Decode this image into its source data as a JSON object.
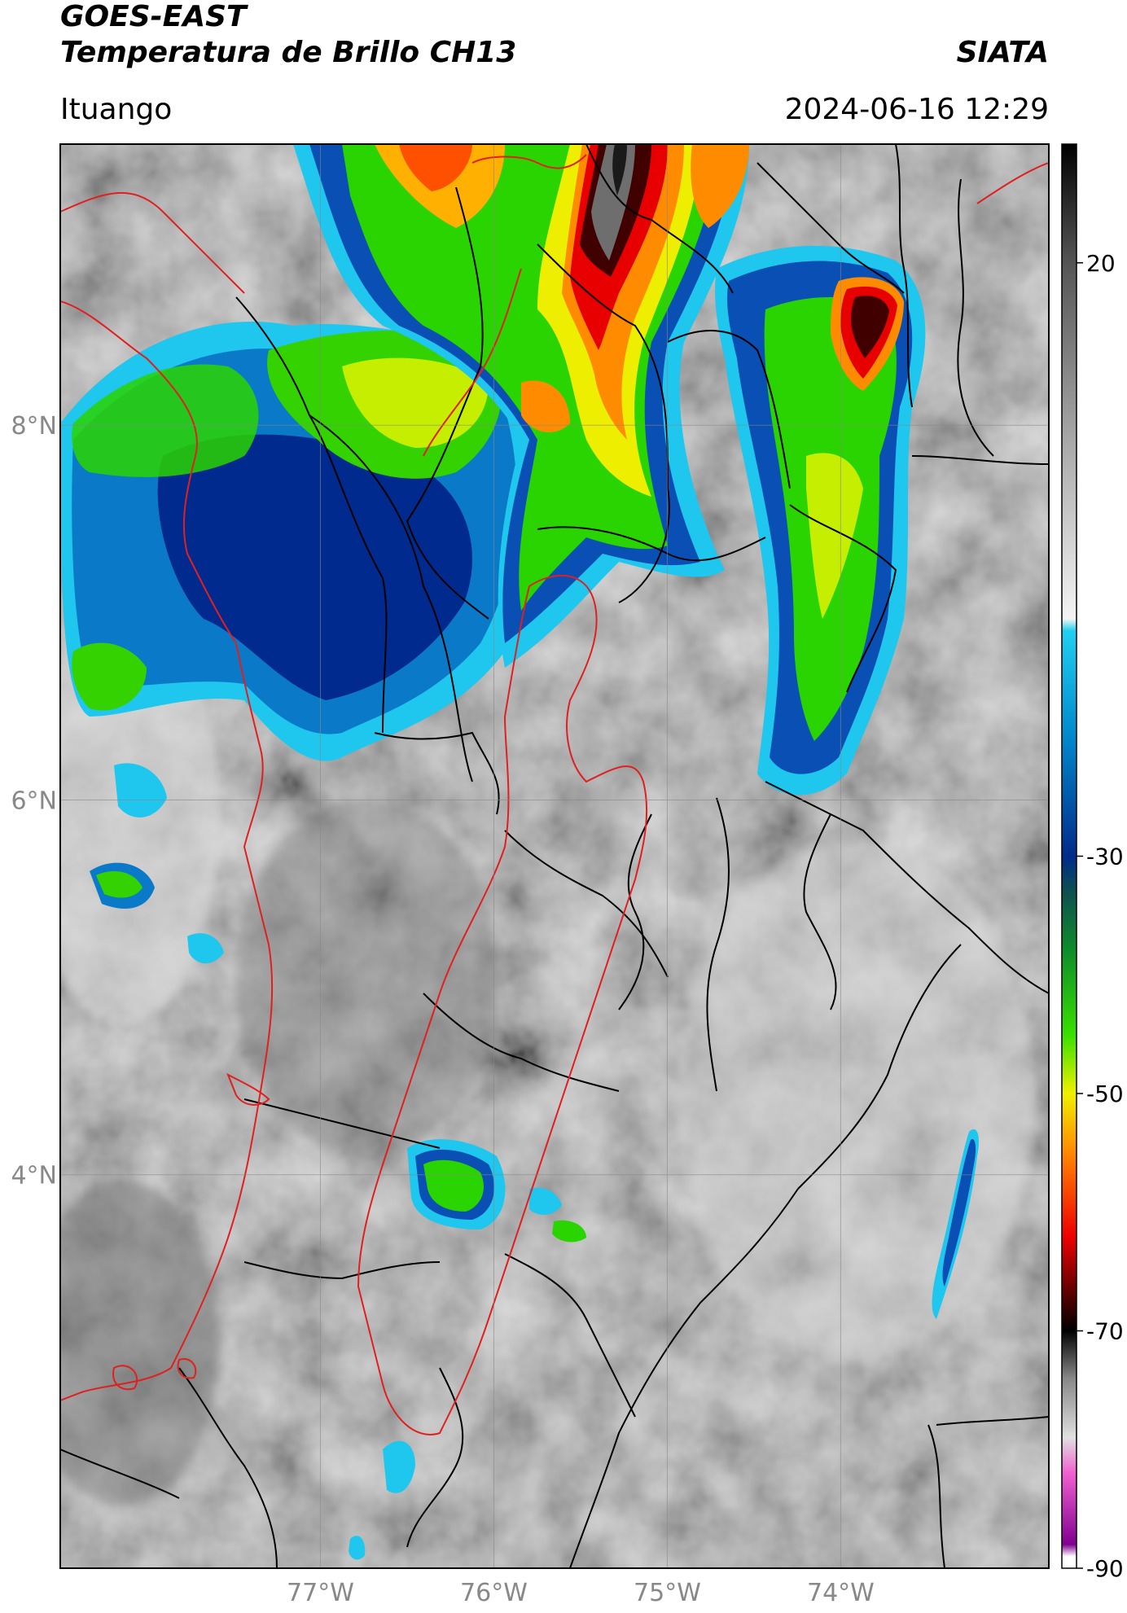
{
  "header": {
    "title_line1": "GOES-EAST",
    "title_line2": "Temperatura de Brillo CH13",
    "organization": "SIATA",
    "location": "Ituango",
    "timestamp": "2024-06-16 12:29"
  },
  "map": {
    "lon_range": [
      -78.5,
      -72.8
    ],
    "lat_range": [
      1.9,
      9.5
    ],
    "lon_ticks": [
      {
        "value": -77,
        "label": "77°W"
      },
      {
        "value": -76,
        "label": "76°W"
      },
      {
        "value": -75,
        "label": "75°W"
      },
      {
        "value": -74,
        "label": "74°W"
      }
    ],
    "lat_ticks": [
      {
        "value": 8,
        "label": "8°N"
      },
      {
        "value": 6,
        "label": "6°N"
      },
      {
        "value": 4,
        "label": "4°N"
      }
    ],
    "colors": {
      "background_gray": "#9a9a9a",
      "border_black": "#000000",
      "border_red": "#e02020",
      "grid": "#888888"
    },
    "cloud_regions": [
      {
        "name": "north-central-convective-system",
        "peak_temp": -70
      },
      {
        "name": "northeast-convective-cell",
        "peak_temp": -65
      },
      {
        "name": "pacific-coast-cloud-mass",
        "peak_temp": -45
      },
      {
        "name": "southern-small-cell",
        "peak_temp": -45
      }
    ]
  },
  "colorbar": {
    "range": [
      -90,
      30
    ],
    "ticks": [
      {
        "value": 20,
        "label": "20"
      },
      {
        "value": -30,
        "label": "-30"
      },
      {
        "value": -50,
        "label": "-50"
      },
      {
        "value": -70,
        "label": "-70"
      },
      {
        "value": -90,
        "label": "-90"
      }
    ],
    "stops": [
      {
        "value": 30,
        "color": "#000000"
      },
      {
        "value": 20,
        "color": "#555555"
      },
      {
        "value": 5,
        "color": "#a8a8a8"
      },
      {
        "value": -10,
        "color": "#f4f4f4"
      },
      {
        "value": -11,
        "color": "#20d0f0"
      },
      {
        "value": -20,
        "color": "#0088cc"
      },
      {
        "value": -30,
        "color": "#002b8a"
      },
      {
        "value": -33,
        "color": "#0e5050"
      },
      {
        "value": -38,
        "color": "#0e8e2a"
      },
      {
        "value": -45,
        "color": "#38e000"
      },
      {
        "value": -50,
        "color": "#f0f000"
      },
      {
        "value": -55,
        "color": "#ff8800"
      },
      {
        "value": -62,
        "color": "#ee0000"
      },
      {
        "value": -68,
        "color": "#380000"
      },
      {
        "value": -70,
        "color": "#000000"
      },
      {
        "value": -74,
        "color": "#888888"
      },
      {
        "value": -79,
        "color": "#e0e0e0"
      },
      {
        "value": -82,
        "color": "#f060d0"
      },
      {
        "value": -88,
        "color": "#800090"
      },
      {
        "value": -89,
        "color": "#ffffff"
      },
      {
        "value": -90,
        "color": "#ffffff"
      }
    ]
  }
}
